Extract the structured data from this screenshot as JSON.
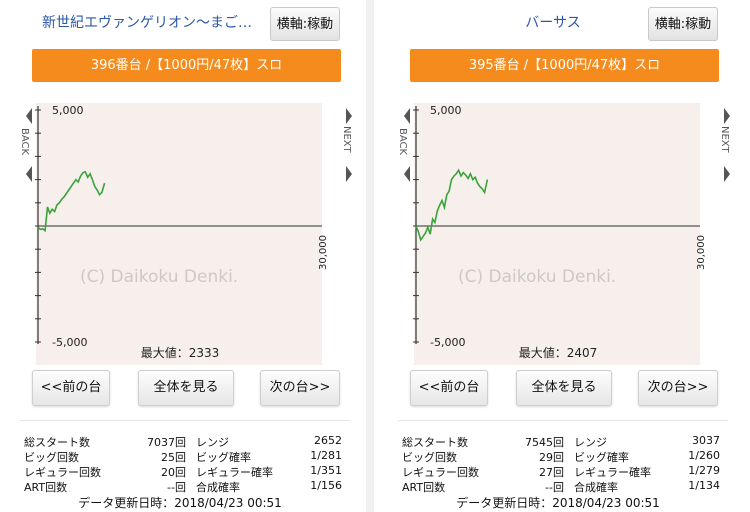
{
  "panels": [
    {
      "title": "新世紀エヴァンゲリオン～まご…",
      "axis_button": "横軸:稼動",
      "machine": "396番台 /【1000円/47枚】スロ",
      "chart": {
        "y_top_label": "5,000",
        "y_bottom_label": "-5,000",
        "x_label": "30,000",
        "watermark": "(C) Daikoku Denki.",
        "back_label": "BACK",
        "next_label": "NEXT",
        "max_label": "最大値：2333",
        "line_color": "#3aa33a"
      },
      "buttons": {
        "prev": "<<前の台",
        "all": "全体を見る",
        "next": "次の台>>"
      },
      "stats": [
        {
          "label1": "総スタート数",
          "value1": "7037回",
          "label2": "レンジ",
          "value2": "2652"
        },
        {
          "label1": "ビッグ回数",
          "value1": "25回",
          "label2": "ビッグ確率",
          "value2": "1/281"
        },
        {
          "label1": "レギュラー回数",
          "value1": "20回",
          "label2": "レギュラー確率",
          "value2": "1/351"
        },
        {
          "label1": "ART回数",
          "value1": "--回",
          "label2": "合成確率",
          "value2": "1/156"
        }
      ],
      "updated": "データ更新日時：2018/04/23 00:51"
    },
    {
      "title": "バーサス",
      "axis_button": "横軸:稼動",
      "machine": "395番台 /【1000円/47枚】スロ",
      "chart": {
        "y_top_label": "5,000",
        "y_bottom_label": "-5,000",
        "x_label": "30,000",
        "watermark": "(C) Daikoku Denki.",
        "back_label": "BACK",
        "next_label": "NEXT",
        "max_label": "最大値：2407",
        "line_color": "#3aa33a"
      },
      "buttons": {
        "prev": "<<前の台",
        "all": "全体を見る",
        "next": "次の台>>"
      },
      "stats": [
        {
          "label1": "総スタート数",
          "value1": "7545回",
          "label2": "レンジ",
          "value2": "3037"
        },
        {
          "label1": "ビッグ回数",
          "value1": "29回",
          "label2": "ビッグ確率",
          "value2": "1/260"
        },
        {
          "label1": "レギュラー回数",
          "value1": "27回",
          "label2": "レギュラー確率",
          "value2": "1/279"
        },
        {
          "label1": "ART回数",
          "value1": "--回",
          "label2": "合成確率",
          "value2": "1/134"
        }
      ],
      "updated": "データ更新日時：2018/04/23 00:51"
    }
  ],
  "chart_data": [
    {
      "type": "line",
      "x_unit": "games",
      "xlim": [
        0,
        30000
      ],
      "ylim": [
        -5000,
        5000
      ],
      "series": [
        {
          "x": [
            0,
            260,
            500,
            750,
            1000,
            1250,
            1500,
            1750,
            2000,
            2250,
            2500,
            2750,
            3000,
            3250,
            3500,
            3750,
            4000,
            4250,
            4500,
            4750,
            5000,
            5250,
            5500,
            5750,
            6000,
            6250,
            6500,
            6750,
            7037
          ],
          "y": [
            -50,
            -150,
            -120,
            -200,
            820,
            550,
            720,
            620,
            900,
            1000,
            1150,
            1250,
            1400,
            1550,
            1700,
            1850,
            2000,
            1900,
            2150,
            2300,
            2333,
            2100,
            2250,
            2000,
            1700,
            1550,
            1350,
            1450,
            1850
          ]
        }
      ]
    },
    {
      "type": "line",
      "x_unit": "games",
      "xlim": [
        0,
        30000
      ],
      "ylim": [
        -5000,
        5000
      ],
      "series": [
        {
          "x": [
            0,
            250,
            500,
            750,
            1000,
            1250,
            1500,
            1750,
            2000,
            2250,
            2500,
            2750,
            3000,
            3250,
            3500,
            3750,
            4000,
            4250,
            4500,
            4750,
            5000,
            5250,
            5500,
            5750,
            6000,
            6250,
            6500,
            6750,
            7000,
            7250,
            7545
          ],
          "y": [
            0,
            -250,
            -600,
            -450,
            -300,
            -50,
            -350,
            300,
            150,
            650,
            900,
            1100,
            800,
            1350,
            1500,
            2000,
            2150,
            2250,
            2407,
            2150,
            2300,
            2200,
            2050,
            2250,
            2000,
            2100,
            1850,
            1700,
            1600,
            1450,
            2000
          ]
        }
      ]
    }
  ]
}
